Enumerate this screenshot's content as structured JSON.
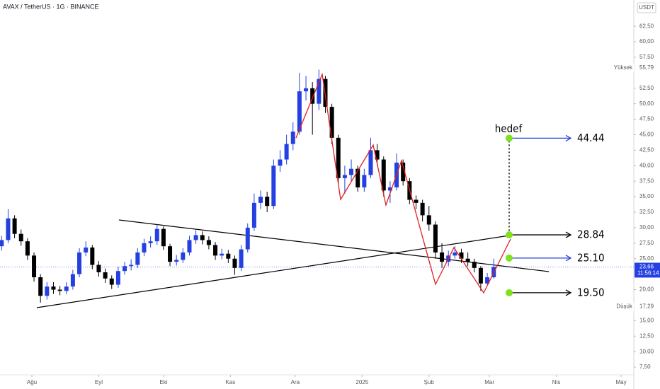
{
  "chart_data": {
    "type": "candlestick",
    "title": "AVAX / TetherUS · 1G · BINANCE",
    "y_axis_label": "USDT",
    "up_color": "#2440e0",
    "down_color": "#000000",
    "xlim": [
      -14.76,
      278.9
    ],
    "ylim": [
      6.25,
      64.0
    ],
    "xticks": [
      {
        "value": 0,
        "label": "Ağu"
      },
      {
        "value": 31,
        "label": "Eyl"
      },
      {
        "value": 61,
        "label": "Eki"
      },
      {
        "value": 92,
        "label": "Kas"
      },
      {
        "value": 122,
        "label": "Ara"
      },
      {
        "value": 153,
        "label": "2025"
      },
      {
        "value": 184,
        "label": "Şub"
      },
      {
        "value": 212,
        "label": "Mar"
      },
      {
        "value": 243,
        "label": "Nis"
      },
      {
        "value": 273,
        "label": "May"
      }
    ],
    "yticks": [
      {
        "value": 62.5,
        "label": "62,50"
      },
      {
        "value": 60,
        "label": "60,00"
      },
      {
        "value": 57.5,
        "label": "57,50"
      },
      {
        "value": 52.5,
        "label": "52,50"
      },
      {
        "value": 50,
        "label": "50,00"
      },
      {
        "value": 47.5,
        "label": "47,50"
      },
      {
        "value": 45,
        "label": "45,00"
      },
      {
        "value": 42.5,
        "label": "42,50"
      },
      {
        "value": 40,
        "label": "40,00"
      },
      {
        "value": 37.5,
        "label": "37,50"
      },
      {
        "value": 35,
        "label": "35,00"
      },
      {
        "value": 32.5,
        "label": "32,50"
      },
      {
        "value": 30,
        "label": "30,00"
      },
      {
        "value": 27.5,
        "label": "27,50"
      },
      {
        "value": 25,
        "label": "25,00"
      },
      {
        "value": 20,
        "label": "20,00"
      },
      {
        "value": 15,
        "label": "15,00"
      },
      {
        "value": 12.5,
        "label": "12,50"
      },
      {
        "value": 10,
        "label": "10,00"
      },
      {
        "value": 7.5,
        "label": "7,50"
      }
    ],
    "high_marker": {
      "name": "Yüksek",
      "value": 55.79,
      "label": "55,79"
    },
    "low_marker": {
      "name": "Düşük",
      "value": 17.29,
      "label": "17,29"
    },
    "last_price": {
      "value": 23.66,
      "label": "23,66",
      "countdown": "11:56:14"
    },
    "annotation": "hedef",
    "targets": [
      {
        "value": 44.44,
        "label": "44.44",
        "color": "#2440e0"
      },
      {
        "value": 28.84,
        "label": "28.84",
        "color": "#000000"
      },
      {
        "value": 25.1,
        "label": "25.10",
        "color": "#2440e0"
      },
      {
        "value": 19.5,
        "label": "19.50",
        "color": "#000000"
      }
    ],
    "x": [
      -14,
      -11,
      -8,
      -5,
      -2,
      1,
      4,
      7,
      10,
      13,
      16,
      19,
      22,
      25,
      28,
      31,
      34,
      37,
      40,
      43,
      46,
      49,
      52,
      55,
      58,
      61,
      64,
      67,
      70,
      73,
      76,
      79,
      82,
      85,
      88,
      91,
      94,
      97,
      100,
      103,
      106,
      109,
      112,
      115,
      118,
      121,
      124,
      127,
      130,
      133,
      136,
      139,
      142,
      145,
      148,
      151,
      154,
      157,
      160,
      163,
      166,
      169,
      172,
      175,
      178,
      181,
      184,
      187,
      190,
      193,
      196,
      199,
      202,
      205,
      208,
      211,
      214
    ],
    "open": [
      27.0,
      28.0,
      31.5,
      29.0,
      27.8,
      25.5,
      22.0,
      19.0,
      20.5,
      20.0,
      19.8,
      20.5,
      22.5,
      26.0,
      26.8,
      24.0,
      22.8,
      21.8,
      20.8,
      23.0,
      23.8,
      24.0,
      26.0,
      27.5,
      27.8,
      29.8,
      27.0,
      24.5,
      24.8,
      26.0,
      28.0,
      28.8,
      28.0,
      27.2,
      25.5,
      25.8,
      25.0,
      23.5,
      26.5,
      30.0,
      34.0,
      35.0,
      33.5,
      40.0,
      41.0,
      43.5,
      45.5,
      52.0,
      52.5,
      50.0,
      54.0,
      49.5,
      44.5,
      38.0,
      38.5,
      39.5,
      36.5,
      38.5,
      42.5,
      41.0,
      36.0,
      36.5,
      40.5,
      37.5,
      34.5,
      34.0,
      32.0,
      30.5,
      26.0,
      24.5,
      25.5,
      26.0,
      25.0,
      24.5,
      23.5,
      21.0,
      22.0
    ],
    "high": [
      28.7,
      33.0,
      32.0,
      29.7,
      28.3,
      26.0,
      22.5,
      21.2,
      21.2,
      20.6,
      21.2,
      23.2,
      26.7,
      27.8,
      27.2,
      24.6,
      23.4,
      22.3,
      23.7,
      24.5,
      24.9,
      26.7,
      28.2,
      28.6,
      30.5,
      30.2,
      27.4,
      25.6,
      26.7,
      28.7,
      29.6,
      29.4,
      28.6,
      27.7,
      26.6,
      26.4,
      25.5,
      27.2,
      30.7,
      35.5,
      36.0,
      35.8,
      41.0,
      42.5,
      45.0,
      47.0,
      55.0,
      54.5,
      53.5,
      55.5,
      54.5,
      50.0,
      45.0,
      40.0,
      41.0,
      40.0,
      39.5,
      44.5,
      43.5,
      41.5,
      37.5,
      42.0,
      41.0,
      38.0,
      35.2,
      34.5,
      33.5,
      31.0,
      27.5,
      26.3,
      27.0,
      26.6,
      26.0,
      25.0,
      23.8,
      22.7,
      25.0
    ],
    "low": [
      26.3,
      27.5,
      28.3,
      27.1,
      24.8,
      21.3,
      17.9,
      18.4,
      19.3,
      19.1,
      19.3,
      20.0,
      22.0,
      25.4,
      23.3,
      22.1,
      21.1,
      20.1,
      20.3,
      22.4,
      23.1,
      23.5,
      25.4,
      26.8,
      27.2,
      26.4,
      23.8,
      23.9,
      24.3,
      25.5,
      27.4,
      27.3,
      26.5,
      24.8,
      24.9,
      24.3,
      22.4,
      23.0,
      26.0,
      29.5,
      33.0,
      32.5,
      33.0,
      39.0,
      40.2,
      42.5,
      45.0,
      50.5,
      45.0,
      49.0,
      48.5,
      43.5,
      37.0,
      35.5,
      37.5,
      35.8,
      35.8,
      38.0,
      40.0,
      35.0,
      34.0,
      36.0,
      36.8,
      33.8,
      33.0,
      31.0,
      29.5,
      25.0,
      23.5,
      23.8,
      25.0,
      24.3,
      23.8,
      22.8,
      19.8,
      20.8,
      21.8
    ],
    "close": [
      28.0,
      31.5,
      29.0,
      27.8,
      25.5,
      22.0,
      19.0,
      20.5,
      20.0,
      19.8,
      20.5,
      22.5,
      26.0,
      26.8,
      24.0,
      22.8,
      21.8,
      20.8,
      23.0,
      23.8,
      24.0,
      26.0,
      27.5,
      27.8,
      29.8,
      27.0,
      24.5,
      24.8,
      26.0,
      28.0,
      28.8,
      28.0,
      27.2,
      25.5,
      25.8,
      25.0,
      23.5,
      26.5,
      30.0,
      34.0,
      35.0,
      33.5,
      40.0,
      41.0,
      43.5,
      45.5,
      52.0,
      52.5,
      50.0,
      54.0,
      49.5,
      44.5,
      38.0,
      38.5,
      39.5,
      36.5,
      38.5,
      42.5,
      41.0,
      36.0,
      36.5,
      40.5,
      37.5,
      34.5,
      34.0,
      32.0,
      30.5,
      26.0,
      24.5,
      25.5,
      26.0,
      25.0,
      24.5,
      23.5,
      21.0,
      22.0,
      23.66
    ]
  }
}
